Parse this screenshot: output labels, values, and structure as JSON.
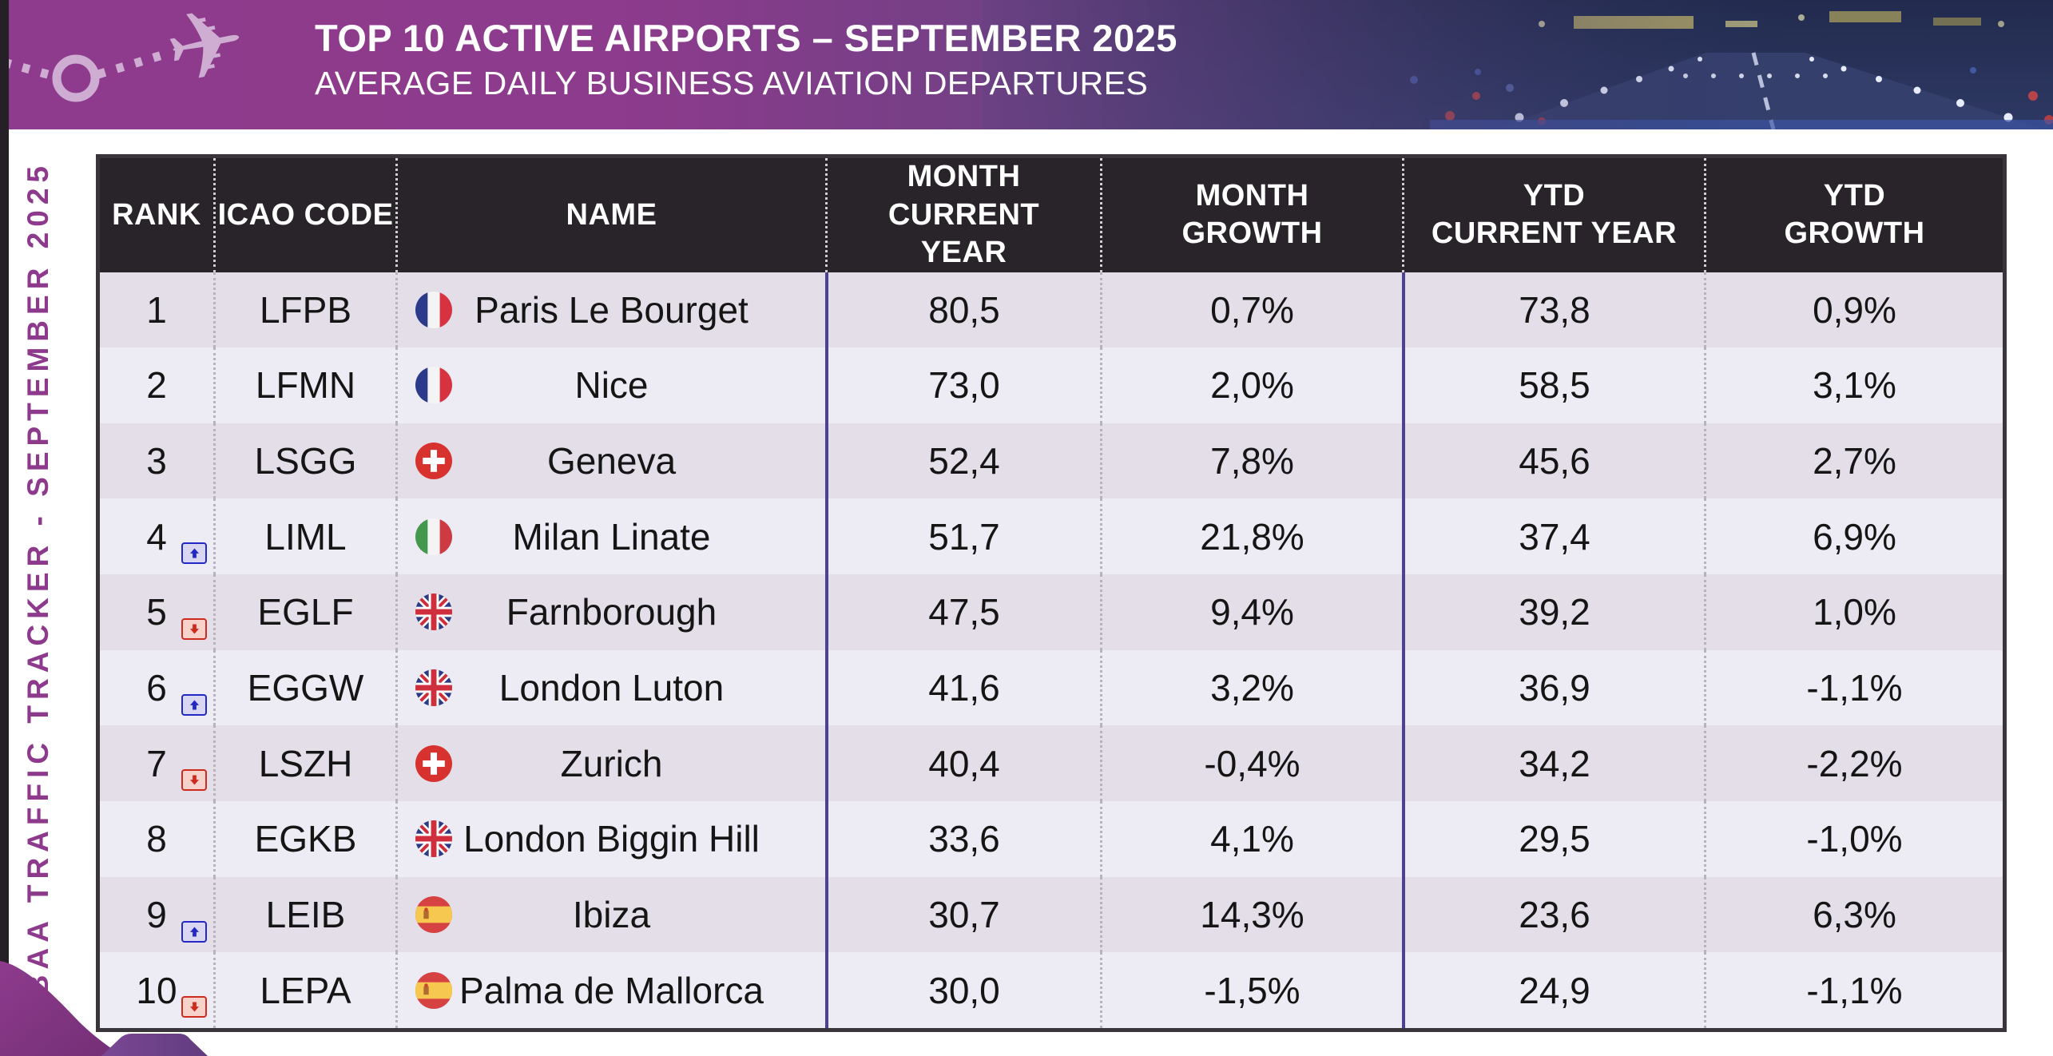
{
  "banner": {
    "title": "TOP 10 ACTIVE AIRPORTS – SEPTEMBER 2025",
    "subtitle": "AVERAGE DAILY BUSINESS AVIATION DEPARTURES"
  },
  "sidebar": {
    "label": "EBAA TRAFFIC TRACKER - SEPTEMBER 2025"
  },
  "icons": {
    "jet": "✈",
    "rank_up": "blue up-arrow chip",
    "rank_down": "red down-arrow chip",
    "flags": [
      "france",
      "switzerland",
      "italy",
      "uk",
      "spain"
    ]
  },
  "colors": {
    "accent_purple": "#8e3b8d",
    "banner_blue": "#2b3560",
    "logo_lavender": "#cfadd2",
    "header_bg": "#282429",
    "header_text": "#ffffff",
    "row_odd": "#e4dee9",
    "row_even": "#edebf3",
    "divider_purple": "#4d4193",
    "divider_dotted": "#b7b3bd",
    "border_dark": "#3a353b",
    "up_blue": "#2328c4",
    "down_red": "#cd2b1e"
  },
  "table": {
    "columns": [
      {
        "id": "rank",
        "lines": [
          "RANK"
        ]
      },
      {
        "id": "icao",
        "lines": [
          "ICAO CODE"
        ]
      },
      {
        "id": "name",
        "lines": [
          "NAME"
        ]
      },
      {
        "id": "month_current",
        "lines": [
          "MONTH CURRENT",
          "YEAR"
        ]
      },
      {
        "id": "month_growth",
        "lines": [
          "MONTH",
          "GROWTH"
        ]
      },
      {
        "id": "ytd_current",
        "lines": [
          "YTD",
          "CURRENT YEAR"
        ]
      },
      {
        "id": "ytd_growth",
        "lines": [
          "YTD",
          "GROWTH"
        ]
      }
    ],
    "rows": [
      {
        "rank": "1",
        "trend": null,
        "icao": "LFPB",
        "country": "france",
        "name": "Paris Le Bourget",
        "month_current": "80,5",
        "month_growth": "0,7%",
        "ytd_current": "73,8",
        "ytd_growth": "0,9%"
      },
      {
        "rank": "2",
        "trend": null,
        "icao": "LFMN",
        "country": "france",
        "name": "Nice",
        "month_current": "73,0",
        "month_growth": "2,0%",
        "ytd_current": "58,5",
        "ytd_growth": "3,1%"
      },
      {
        "rank": "3",
        "trend": null,
        "icao": "LSGG",
        "country": "switzerland",
        "name": "Geneva",
        "month_current": "52,4",
        "month_growth": "7,8%",
        "ytd_current": "45,6",
        "ytd_growth": "2,7%"
      },
      {
        "rank": "4",
        "trend": "up",
        "icao": "LIML",
        "country": "italy",
        "name": "Milan Linate",
        "month_current": "51,7",
        "month_growth": "21,8%",
        "ytd_current": "37,4",
        "ytd_growth": "6,9%"
      },
      {
        "rank": "5",
        "trend": "down",
        "icao": "EGLF",
        "country": "uk",
        "name": "Farnborough",
        "month_current": "47,5",
        "month_growth": "9,4%",
        "ytd_current": "39,2",
        "ytd_growth": "1,0%"
      },
      {
        "rank": "6",
        "trend": "up",
        "icao": "EGGW",
        "country": "uk",
        "name": "London Luton",
        "month_current": "41,6",
        "month_growth": "3,2%",
        "ytd_current": "36,9",
        "ytd_growth": "-1,1%"
      },
      {
        "rank": "7",
        "trend": "down",
        "icao": "LSZH",
        "country": "switzerland",
        "name": "Zurich",
        "month_current": "40,4",
        "month_growth": "-0,4%",
        "ytd_current": "34,2",
        "ytd_growth": "-2,2%"
      },
      {
        "rank": "8",
        "trend": null,
        "icao": "EGKB",
        "country": "uk",
        "name": "London Biggin Hill",
        "month_current": "33,6",
        "month_growth": "4,1%",
        "ytd_current": "29,5",
        "ytd_growth": "-1,0%"
      },
      {
        "rank": "9",
        "trend": "up",
        "icao": "LEIB",
        "country": "spain",
        "name": "Ibiza",
        "month_current": "30,7",
        "month_growth": "14,3%",
        "ytd_current": "23,6",
        "ytd_growth": "6,3%"
      },
      {
        "rank": "10",
        "trend": "down",
        "icao": "LEPA",
        "country": "spain",
        "name": "Palma de Mallorca",
        "month_current": "30,0",
        "month_growth": "-1,5%",
        "ytd_current": "24,9",
        "ytd_growth": "-1,1%"
      }
    ]
  },
  "chart_data": {
    "type": "table",
    "title": "TOP 10 ACTIVE AIRPORTS – SEPTEMBER 2025",
    "subtitle": "AVERAGE DAILY BUSINESS AVIATION DEPARTURES",
    "columns": [
      "RANK",
      "ICAO CODE",
      "NAME",
      "MONTH CURRENT YEAR",
      "MONTH GROWTH",
      "YTD CURRENT YEAR",
      "YTD GROWTH"
    ],
    "rows": [
      {
        "rank": 1,
        "rank_change": null,
        "icao": "LFPB",
        "country": "France",
        "name": "Paris Le Bourget",
        "month_current_year": 80.5,
        "month_growth_pct": 0.7,
        "ytd_current_year": 73.8,
        "ytd_growth_pct": 0.9
      },
      {
        "rank": 2,
        "rank_change": null,
        "icao": "LFMN",
        "country": "France",
        "name": "Nice",
        "month_current_year": 73.0,
        "month_growth_pct": 2.0,
        "ytd_current_year": 58.5,
        "ytd_growth_pct": 3.1
      },
      {
        "rank": 3,
        "rank_change": null,
        "icao": "LSGG",
        "country": "Switzerland",
        "name": "Geneva",
        "month_current_year": 52.4,
        "month_growth_pct": 7.8,
        "ytd_current_year": 45.6,
        "ytd_growth_pct": 2.7
      },
      {
        "rank": 4,
        "rank_change": "up",
        "icao": "LIML",
        "country": "Italy",
        "name": "Milan Linate",
        "month_current_year": 51.7,
        "month_growth_pct": 21.8,
        "ytd_current_year": 37.4,
        "ytd_growth_pct": 6.9
      },
      {
        "rank": 5,
        "rank_change": "down",
        "icao": "EGLF",
        "country": "United Kingdom",
        "name": "Farnborough",
        "month_current_year": 47.5,
        "month_growth_pct": 9.4,
        "ytd_current_year": 39.2,
        "ytd_growth_pct": 1.0
      },
      {
        "rank": 6,
        "rank_change": "up",
        "icao": "EGGW",
        "country": "United Kingdom",
        "name": "London Luton",
        "month_current_year": 41.6,
        "month_growth_pct": 3.2,
        "ytd_current_year": 36.9,
        "ytd_growth_pct": -1.1
      },
      {
        "rank": 7,
        "rank_change": "down",
        "icao": "LSZH",
        "country": "Switzerland",
        "name": "Zurich",
        "month_current_year": 40.4,
        "month_growth_pct": -0.4,
        "ytd_current_year": 34.2,
        "ytd_growth_pct": -2.2
      },
      {
        "rank": 8,
        "rank_change": null,
        "icao": "EGKB",
        "country": "United Kingdom",
        "name": "London Biggin Hill",
        "month_current_year": 33.6,
        "month_growth_pct": 4.1,
        "ytd_current_year": 29.5,
        "ytd_growth_pct": -1.0
      },
      {
        "rank": 9,
        "rank_change": "up",
        "icao": "LEIB",
        "country": "Spain",
        "name": "Ibiza",
        "month_current_year": 30.7,
        "month_growth_pct": 14.3,
        "ytd_current_year": 23.6,
        "ytd_growth_pct": 6.3
      },
      {
        "rank": 10,
        "rank_change": "down",
        "icao": "LEPA",
        "country": "Spain",
        "name": "Palma de Mallorca",
        "month_current_year": 30.0,
        "month_growth_pct": -1.5,
        "ytd_current_year": 24.9,
        "ytd_growth_pct": -1.1
      }
    ],
    "number_format": "decimal comma"
  }
}
